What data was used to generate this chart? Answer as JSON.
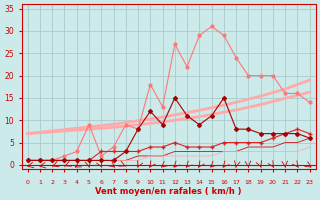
{
  "x": [
    0,
    1,
    2,
    3,
    4,
    5,
    6,
    7,
    8,
    9,
    10,
    11,
    12,
    13,
    14,
    15,
    16,
    17,
    18,
    19,
    20,
    21,
    22,
    23
  ],
  "background_color": "#cceaea",
  "grid_color": "#aacccc",
  "xlabel": "Vent moyen/en rafales ( km/h )",
  "xlabel_color": "#cc0000",
  "tick_color": "#cc0000",
  "xlim": [
    -0.5,
    23.5
  ],
  "ylim": [
    -1,
    36
  ],
  "yticks": [
    0,
    5,
    10,
    15,
    20,
    25,
    30,
    35
  ],
  "line_light_upper": [
    7.0,
    7.3,
    7.6,
    7.9,
    8.2,
    8.5,
    8.8,
    9.1,
    9.5,
    9.9,
    10.3,
    10.7,
    11.2,
    11.7,
    12.2,
    12.8,
    13.4,
    14.0,
    14.7,
    15.4,
    16.2,
    17.0,
    18.0,
    19.0
  ],
  "line_light_lower": [
    7.0,
    7.2,
    7.4,
    7.6,
    7.8,
    8.0,
    8.2,
    8.4,
    8.7,
    9.0,
    9.3,
    9.6,
    10.0,
    10.4,
    10.8,
    11.3,
    11.8,
    12.3,
    12.9,
    13.5,
    14.2,
    14.9,
    15.6,
    16.3
  ],
  "line_jagged_light": [
    1,
    1,
    1,
    2,
    3,
    9,
    2,
    4,
    9,
    8,
    18,
    13,
    27,
    22,
    29,
    31,
    29,
    24,
    20,
    20,
    20,
    16,
    16,
    14
  ],
  "line_jagged_dark": [
    1,
    1,
    1,
    1,
    1,
    1,
    1,
    1,
    3,
    8,
    12,
    9,
    15,
    11,
    9,
    11,
    15,
    8,
    8,
    7,
    7,
    7,
    7,
    6
  ],
  "line_flat1": [
    1,
    1,
    1,
    1,
    1,
    1,
    3,
    3,
    3,
    3,
    4,
    4,
    5,
    4,
    4,
    4,
    5,
    5,
    5,
    5,
    6,
    7,
    8,
    7
  ],
  "line_flat2": [
    1,
    1,
    1,
    1,
    1,
    1,
    1,
    1,
    1,
    2,
    2,
    2,
    3,
    3,
    3,
    3,
    3,
    3,
    4,
    4,
    4,
    5,
    5,
    6
  ],
  "line_flat3": [
    1,
    1,
    1,
    1,
    1,
    1,
    1,
    1,
    1,
    1,
    2,
    2,
    2,
    2,
    2,
    2,
    3,
    3,
    3,
    3,
    3,
    3,
    3,
    4
  ],
  "color_light_pink": "#ffaaaa",
  "color_mid_pink": "#ff7777",
  "color_dark_red": "#aa0000",
  "color_red": "#dd2222",
  "color_darkred2": "#cc1111"
}
